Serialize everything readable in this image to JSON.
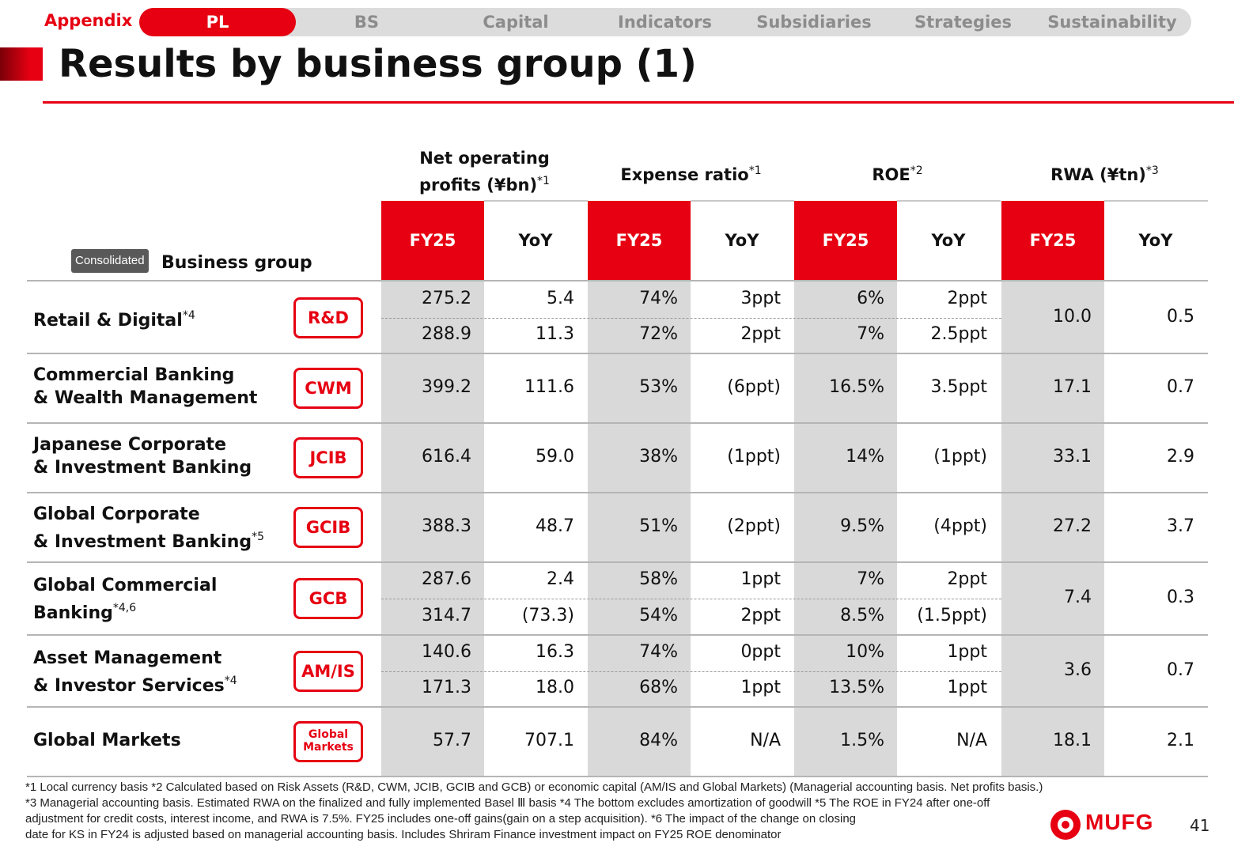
{
  "nav": {
    "appendix": "Appendix",
    "tabs": [
      "PL",
      "BS",
      "Capital",
      "Indicators",
      "Subsidiaries",
      "Strategies",
      "Sustainability"
    ],
    "active": "PL"
  },
  "title": "Results by business group (1)",
  "table": {
    "consolidated_label": "Consolidated",
    "business_group_label": "Business group",
    "metrics": [
      {
        "line1": "Net operating",
        "line2": "profits (¥bn)",
        "note": "*1"
      },
      {
        "line1": "Expense ratio",
        "note": "*1"
      },
      {
        "line1": "ROE",
        "note": "*2"
      },
      {
        "line1": "RWA (¥tn)",
        "note": "*3"
      }
    ],
    "sub_headers": [
      "FY25",
      "YoY",
      "FY25",
      "YoY",
      "FY25",
      "YoY",
      "FY25",
      "YoY"
    ],
    "rows": [
      {
        "name1": "Retail & Digital",
        "name2": "",
        "note": "*4",
        "badge": "R&D",
        "lines": [
          [
            "275.2",
            "5.4",
            "74%",
            "3ppt",
            "6%",
            "2ppt"
          ],
          [
            "288.9",
            "11.3",
            "72%",
            "2ppt",
            "7%",
            "2.5ppt"
          ]
        ],
        "rwa": [
          "10.0",
          "0.5"
        ]
      },
      {
        "name1": "Commercial Banking",
        "name2": "& Wealth Management",
        "note": "",
        "badge": "CWM",
        "lines": [
          [
            "399.2",
            "111.6",
            "53%",
            "(6ppt)",
            "16.5%",
            "3.5ppt"
          ]
        ],
        "rwa": [
          "17.1",
          "0.7"
        ]
      },
      {
        "name1": "Japanese Corporate",
        "name2": "& Investment Banking",
        "note": "",
        "badge": "JCIB",
        "lines": [
          [
            "616.4",
            "59.0",
            "38%",
            "(1ppt)",
            "14%",
            "(1ppt)"
          ]
        ],
        "rwa": [
          "33.1",
          "2.9"
        ]
      },
      {
        "name1": "Global Corporate",
        "name2": "& Investment Banking",
        "note": "*5",
        "badge": "GCIB",
        "lines": [
          [
            "388.3",
            "48.7",
            "51%",
            "(2ppt)",
            "9.5%",
            "(4ppt)"
          ]
        ],
        "rwa": [
          "27.2",
          "3.7"
        ]
      },
      {
        "name1": "Global Commercial",
        "name2": "Banking",
        "note": "*4,6",
        "badge": "GCB",
        "lines": [
          [
            "287.6",
            "2.4",
            "58%",
            "1ppt",
            "7%",
            "2ppt"
          ],
          [
            "314.7",
            "(73.3)",
            "54%",
            "2ppt",
            "8.5%",
            "(1.5ppt)"
          ]
        ],
        "rwa": [
          "7.4",
          "0.3"
        ]
      },
      {
        "name1": "Asset Management",
        "name2": "& Investor Services",
        "note": "*4",
        "badge": "AM/IS",
        "lines": [
          [
            "140.6",
            "16.3",
            "74%",
            "0ppt",
            "10%",
            "1ppt"
          ],
          [
            "171.3",
            "18.0",
            "68%",
            "1ppt",
            "13.5%",
            "1ppt"
          ]
        ],
        "rwa": [
          "3.6",
          "0.7"
        ]
      },
      {
        "name1": "Global Markets",
        "name2": "",
        "note": "",
        "badge": "Global Markets",
        "badge1": "Global",
        "badge2": "Markets",
        "lines": [
          [
            "57.7",
            "707.1",
            "84%",
            "N/A",
            "1.5%",
            "N/A"
          ]
        ],
        "rwa": [
          "18.1",
          "2.1"
        ]
      }
    ]
  },
  "footnotes": [
    "*1 Local currency basis  *2 Calculated based on Risk Assets (R&D, CWM, JCIB, GCIB and GCB) or economic capital (AM/IS and Global Markets) (Managerial accounting basis. Net profits basis.)",
    "*3 Managerial accounting basis. Estimated RWA on the finalized and fully implemented Basel Ⅲ basis  *4 The bottom excludes amortization of goodwill  *5 The ROE in FY24 after one-off",
    "adjustment for credit costs, interest income, and RWA is 7.5%. FY25 includes one-off gains(gain on a step acquisition).  *6 The impact of the change on closing",
    "date for KS in FY24 is adjusted based on managerial accounting basis. Includes Shriram Finance investment impact on FY25 ROE denominator"
  ],
  "logo_text": "MUFG",
  "page_number": "41",
  "colors": {
    "accent": "#e60012",
    "shade": "#d9d9d9",
    "badge_dark": "#595959"
  }
}
